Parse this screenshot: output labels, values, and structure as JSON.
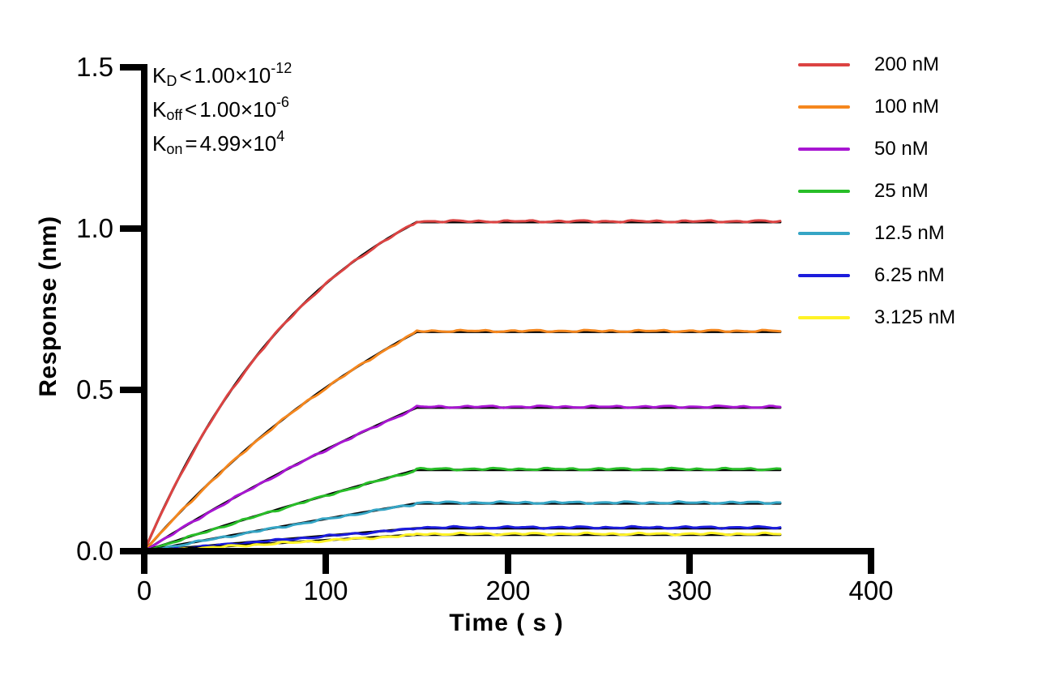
{
  "chart_data": {
    "type": "line",
    "title": "",
    "xlabel": "Time ( s )",
    "ylabel": "Response (nm)",
    "xlim": [
      0,
      400
    ],
    "ylim": [
      0,
      1.5
    ],
    "x_tick_labels": [
      "0",
      "100",
      "200",
      "300",
      "400"
    ],
    "y_tick_labels": [
      "0.0",
      "0.5",
      "1.0",
      "1.5"
    ],
    "grid": false,
    "legend_position": "right",
    "association_end_s": 150,
    "curve_end_s": 350,
    "fit_color": "#000000",
    "model": "one-site association then flat dissociation; R(t)=plateau*(1-exp(-k_obs*t))/(1-exp(-k_obs*150)) for t<=150, R=plateau for 150<t<=350",
    "series": [
      {
        "name": "200 nM",
        "concentration_nM": 200,
        "color": "#DC4342",
        "plateau": 1.02,
        "k_obs": 0.00998
      },
      {
        "name": "100 nM",
        "concentration_nM": 100,
        "color": "#F5871E",
        "plateau": 0.68,
        "k_obs": 0.00499
      },
      {
        "name": "50 nM",
        "concentration_nM": 50,
        "color": "#A816D2",
        "plateau": 0.445,
        "k_obs": 0.002495
      },
      {
        "name": "25 nM",
        "concentration_nM": 25,
        "color": "#28BE28",
        "plateau": 0.252,
        "k_obs": 0.0012475
      },
      {
        "name": "12.5 nM",
        "concentration_nM": 12.5,
        "color": "#35A5C5",
        "plateau": 0.148,
        "k_obs": 0.000624
      },
      {
        "name": "6.25 nM",
        "concentration_nM": 6.25,
        "color": "#1C1CDC",
        "plateau": 0.071,
        "k_obs": 0.000312
      },
      {
        "name": "3.125 nM",
        "concentration_nM": 3.125,
        "color": "#FFF326",
        "plateau": 0.051,
        "k_obs": 0.000156
      }
    ]
  },
  "kinetics": {
    "lines": [
      {
        "base": "K",
        "sub": "D",
        "rel": "<",
        "coeff": "1.00×10",
        "sup": "-12"
      },
      {
        "base": "K",
        "sub": "off",
        "rel": "<",
        "coeff": "1.00×10",
        "sup": "-6"
      },
      {
        "base": "K",
        "sub": "on",
        "rel": "=",
        "coeff": "4.99×10",
        "sup": "4"
      }
    ]
  }
}
